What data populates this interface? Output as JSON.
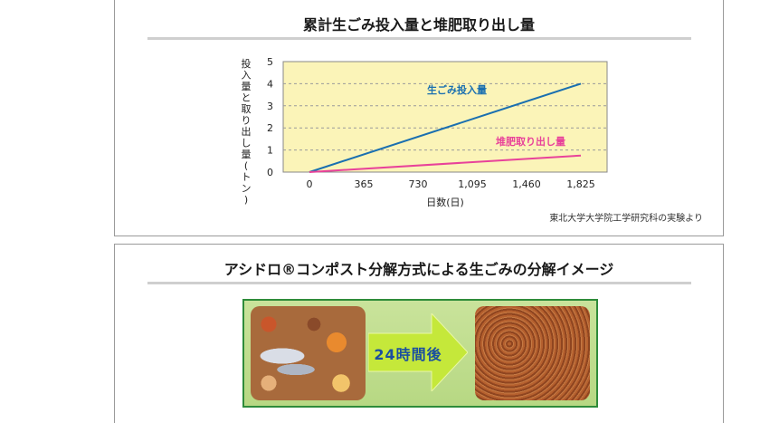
{
  "top_panel": {
    "title": "累計生ごみ投入量と堆肥取り出し量",
    "source_note": "東北大学大学院工学研究科の実験より"
  },
  "bottom_panel": {
    "title": "アシドロ®コンポスト分解方式による生ごみの分解イメージ",
    "arrow_label": "24時間後",
    "before_icon": "food-waste-photo",
    "after_icon": "compost-photo"
  },
  "colors": {
    "plot_background": "#fbf4b8",
    "grid": "#9a9a9a",
    "series_input": "#1a6fb0",
    "series_compost": "#e8429a",
    "arrow_fill": "#c5e83a",
    "frame_green": "#2e8b3a"
  },
  "chart_data": {
    "type": "line",
    "title": "累計生ごみ投入量と堆肥取り出し量",
    "xlabel": "日数(日)",
    "ylabel": "投入量と取り出し量(トン)",
    "x_ticks": [
      "0",
      "365",
      "730",
      "1,095",
      "1,460",
      "1,825"
    ],
    "y_ticks": [
      "0",
      "1",
      "2",
      "3",
      "4",
      "5"
    ],
    "xlim": [
      0,
      1825
    ],
    "ylim": [
      0,
      5
    ],
    "grid": "horizontal dashed",
    "series": [
      {
        "name": "生ごみ投入量",
        "x": [
          0,
          1825
        ],
        "values": [
          0,
          4.0
        ]
      },
      {
        "name": "堆肥取り出し量",
        "x": [
          0,
          1825
        ],
        "values": [
          0,
          0.75
        ]
      }
    ]
  }
}
